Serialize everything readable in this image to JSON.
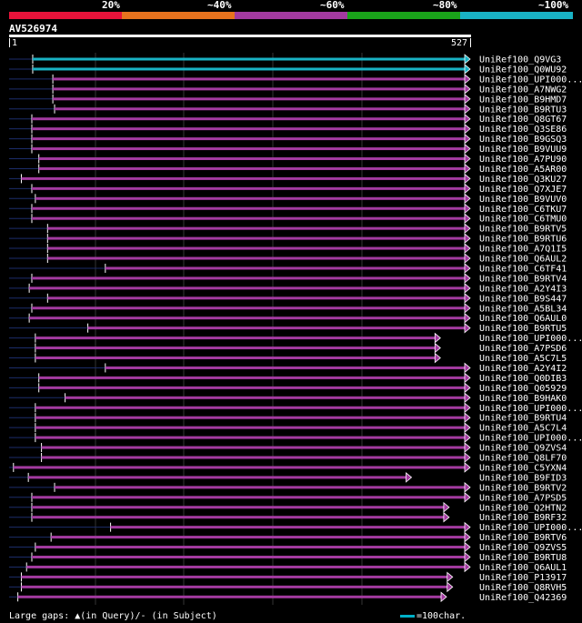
{
  "legend": {
    "labels": [
      "20%",
      "~40%",
      "~60%",
      "~80%",
      "~100%"
    ],
    "colors": [
      "#e8133a",
      "#e8731e",
      "#a33aa0",
      "#1aa31a",
      "#19b2c4"
    ]
  },
  "query": {
    "id": "AV526974",
    "start": "1",
    "end": "527"
  },
  "colors": {
    "identity_high": "#19b2c4",
    "identity_mid": "#a33aa0",
    "gap": "#1c2d6a",
    "grid": "#333333"
  },
  "hits": [
    {
      "name": "UniRef100_Q9VG3",
      "start": 27,
      "end": 527,
      "color": "#19b2c4",
      "arrow": true
    },
    {
      "name": "UniRef100_Q0WU92",
      "start": 27,
      "end": 527,
      "color": "#19b2c4",
      "arrow": true
    },
    {
      "name": "UniRef100_UPI000...",
      "start": 50,
      "end": 527,
      "color": "#a33aa0",
      "arrow": true
    },
    {
      "name": "UniRef100_A7NWG2",
      "start": 50,
      "end": 527,
      "color": "#a33aa0",
      "arrow": true
    },
    {
      "name": "UniRef100_B9HMD7",
      "start": 50,
      "end": 527,
      "color": "#a33aa0",
      "arrow": true
    },
    {
      "name": "UniRef100_B9RTU3",
      "start": 52,
      "end": 527,
      "color": "#a33aa0",
      "arrow": true
    },
    {
      "name": "UniRef100_Q8GT67",
      "start": 26,
      "end": 527,
      "color": "#a33aa0",
      "arrow": true
    },
    {
      "name": "UniRef100_Q3SE86",
      "start": 26,
      "end": 527,
      "color": "#a33aa0",
      "arrow": true
    },
    {
      "name": "UniRef100_B9GSQ3",
      "start": 26,
      "end": 527,
      "color": "#a33aa0",
      "arrow": true
    },
    {
      "name": "UniRef100_B9VUU9",
      "start": 26,
      "end": 527,
      "color": "#a33aa0",
      "arrow": true
    },
    {
      "name": "UniRef100_A7PU90",
      "start": 34,
      "end": 527,
      "color": "#a33aa0",
      "arrow": true
    },
    {
      "name": "UniRef100_A5AR00",
      "start": 34,
      "end": 527,
      "color": "#a33aa0",
      "arrow": true
    },
    {
      "name": "UniRef100_Q3KU27",
      "start": 14,
      "end": 527,
      "color": "#a33aa0",
      "arrow": true
    },
    {
      "name": "UniRef100_Q7XJE7",
      "start": 26,
      "end": 527,
      "color": "#a33aa0",
      "arrow": true
    },
    {
      "name": "UniRef100_B9VUV0",
      "start": 30,
      "end": 527,
      "color": "#a33aa0",
      "arrow": true
    },
    {
      "name": "UniRef100_C6TKU7",
      "start": 26,
      "end": 527,
      "color": "#a33aa0",
      "arrow": true
    },
    {
      "name": "UniRef100_C6TMU0",
      "start": 26,
      "end": 527,
      "color": "#a33aa0",
      "arrow": true
    },
    {
      "name": "UniRef100_B9RTV5",
      "start": 44,
      "end": 527,
      "color": "#a33aa0",
      "arrow": true
    },
    {
      "name": "UniRef100_B9RTU6",
      "start": 44,
      "end": 527,
      "color": "#a33aa0",
      "arrow": true
    },
    {
      "name": "UniRef100_A7Q1I5",
      "start": 44,
      "end": 527,
      "color": "#a33aa0",
      "arrow": true
    },
    {
      "name": "UniRef100_Q6AUL2",
      "start": 44,
      "end": 527,
      "color": "#a33aa0",
      "arrow": true
    },
    {
      "name": "UniRef100_C6TF41",
      "start": 110,
      "end": 527,
      "color": "#a33aa0",
      "arrow": true
    },
    {
      "name": "UniRef100_B9RTV4",
      "start": 26,
      "end": 527,
      "color": "#a33aa0",
      "arrow": true
    },
    {
      "name": "UniRef100_A2Y4I3",
      "start": 23,
      "end": 527,
      "color": "#a33aa0",
      "arrow": true
    },
    {
      "name": "UniRef100_B9S447",
      "start": 44,
      "end": 527,
      "color": "#a33aa0",
      "arrow": true
    },
    {
      "name": "UniRef100_A5BL34",
      "start": 26,
      "end": 527,
      "color": "#a33aa0",
      "arrow": true
    },
    {
      "name": "UniRef100_Q6AUL0",
      "start": 23,
      "end": 527,
      "color": "#a33aa0",
      "arrow": true
    },
    {
      "name": "UniRef100_B9RTU5",
      "start": 90,
      "end": 527,
      "color": "#a33aa0",
      "arrow": true
    },
    {
      "name": "UniRef100_UPI000...",
      "start": 30,
      "end": 493,
      "color": "#a33aa0",
      "arrow": true
    },
    {
      "name": "UniRef100_A7PSD6",
      "start": 30,
      "end": 493,
      "color": "#a33aa0",
      "arrow": true
    },
    {
      "name": "UniRef100_A5C7L5",
      "start": 30,
      "end": 493,
      "color": "#a33aa0",
      "arrow": true
    },
    {
      "name": "UniRef100_A2Y4I2",
      "start": 110,
      "end": 527,
      "color": "#a33aa0",
      "arrow": true
    },
    {
      "name": "UniRef100_Q0DIB3",
      "start": 34,
      "end": 527,
      "color": "#a33aa0",
      "arrow": true
    },
    {
      "name": "UniRef100_Q05929",
      "start": 34,
      "end": 527,
      "color": "#a33aa0",
      "arrow": true
    },
    {
      "name": "UniRef100_B9HAK0",
      "start": 64,
      "end": 527,
      "color": "#a33aa0",
      "arrow": true
    },
    {
      "name": "UniRef100_UPI000...",
      "start": 30,
      "end": 527,
      "color": "#a33aa0",
      "arrow": true
    },
    {
      "name": "UniRef100_B9RTU4",
      "start": 30,
      "end": 527,
      "color": "#a33aa0",
      "arrow": true
    },
    {
      "name": "UniRef100_A5C7L4",
      "start": 30,
      "end": 527,
      "color": "#a33aa0",
      "arrow": true
    },
    {
      "name": "UniRef100_UPI000...",
      "start": 30,
      "end": 527,
      "color": "#a33aa0",
      "arrow": true
    },
    {
      "name": "UniRef100_Q9ZVS4",
      "start": 37,
      "end": 527,
      "color": "#a33aa0",
      "arrow": true
    },
    {
      "name": "UniRef100_Q8LF70",
      "start": 37,
      "end": 527,
      "color": "#a33aa0",
      "arrow": true
    },
    {
      "name": "UniRef100_C5YXN4",
      "start": 5,
      "end": 527,
      "color": "#a33aa0",
      "arrow": true
    },
    {
      "name": "UniRef100_B9FID3",
      "start": 22,
      "end": 460,
      "color": "#a33aa0",
      "arrow": true
    },
    {
      "name": "UniRef100_B9RTV2",
      "start": 52,
      "end": 527,
      "color": "#a33aa0",
      "arrow": true
    },
    {
      "name": "UniRef100_A7PSD5",
      "start": 26,
      "end": 527,
      "color": "#a33aa0",
      "arrow": true
    },
    {
      "name": "UniRef100_Q2HTN2",
      "start": 26,
      "end": 503,
      "color": "#a33aa0",
      "arrow": true
    },
    {
      "name": "UniRef100_B9RF32",
      "start": 26,
      "end": 503,
      "color": "#a33aa0",
      "arrow": true
    },
    {
      "name": "UniRef100_UPI000...",
      "start": 116,
      "end": 527,
      "color": "#a33aa0",
      "arrow": true
    },
    {
      "name": "UniRef100_B9RTV6",
      "start": 48,
      "end": 527,
      "color": "#a33aa0",
      "arrow": true
    },
    {
      "name": "UniRef100_Q9ZVS5",
      "start": 30,
      "end": 527,
      "color": "#a33aa0",
      "arrow": true
    },
    {
      "name": "UniRef100_B9RTU8",
      "start": 26,
      "end": 527,
      "color": "#a33aa0",
      "arrow": true
    },
    {
      "name": "UniRef100_Q6AUL1",
      "start": 20,
      "end": 527,
      "color": "#a33aa0",
      "arrow": true
    },
    {
      "name": "UniRef100_P13917",
      "start": 14,
      "end": 507,
      "color": "#a33aa0",
      "arrow": true
    },
    {
      "name": "UniRef100_Q8RVH5",
      "start": 14,
      "end": 507,
      "color": "#a33aa0",
      "arrow": true
    },
    {
      "name": "UniRef100_Q42369",
      "start": 10,
      "end": 500,
      "color": "#a33aa0",
      "arrow": true
    }
  ],
  "footer": {
    "gaps_text": "Large gaps: ▲(in Query)/- (in Subject)",
    "scale_text": "=100char."
  }
}
